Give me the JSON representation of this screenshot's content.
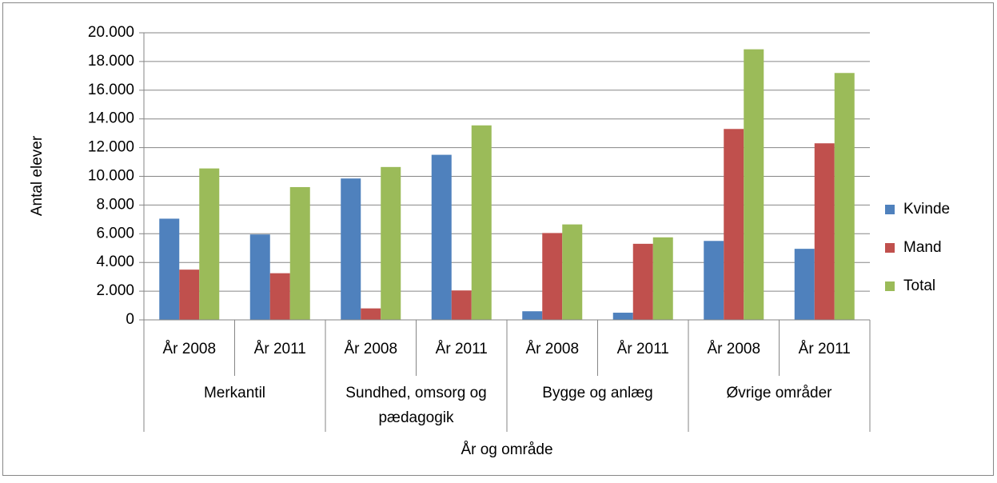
{
  "chart_data": {
    "type": "bar",
    "x_label": "År og område",
    "y_label": "Antal elever",
    "categories": [
      "År 2008",
      "År 2011",
      "År 2008",
      "År 2011",
      "År 2008",
      "År 2011",
      "År 2008",
      "År 2011"
    ],
    "groups": [
      "Merkantil",
      "Sundhed, omsorg og pædagogik",
      "Bygge og anlæg",
      "Øvrige områder"
    ],
    "series": [
      {
        "name": "Kvinde",
        "color": "#4f81bd",
        "values": [
          7050,
          5950,
          9850,
          11500,
          600,
          500,
          5500,
          4950
        ]
      },
      {
        "name": "Mand",
        "color": "#c0504d",
        "values": [
          3500,
          3250,
          800,
          2050,
          6050,
          5300,
          13300,
          12300
        ]
      },
      {
        "name": "Total",
        "color": "#9bbb59",
        "values": [
          10550,
          9250,
          10650,
          13550,
          6650,
          5750,
          18850,
          17200
        ]
      }
    ],
    "ylim": [
      0,
      20000
    ],
    "yticks": [
      0,
      {
        "value": 2000,
        "label": "2.000"
      },
      {
        "value": 4000,
        "label": "4.000"
      },
      {
        "value": 6000,
        "label": "6.000"
      },
      {
        "value": 8000,
        "label": "8.000"
      },
      {
        "value": 10000,
        "label": "10.000"
      },
      {
        "value": 12000,
        "label": "12.000"
      },
      {
        "value": 14000,
        "label": "14.000"
      },
      {
        "value": 16000,
        "label": "16.000"
      },
      {
        "value": 18000,
        "label": "18.000"
      },
      {
        "value": 20000,
        "label": "20.000"
      }
    ],
    "grid": true,
    "legend": "right"
  }
}
